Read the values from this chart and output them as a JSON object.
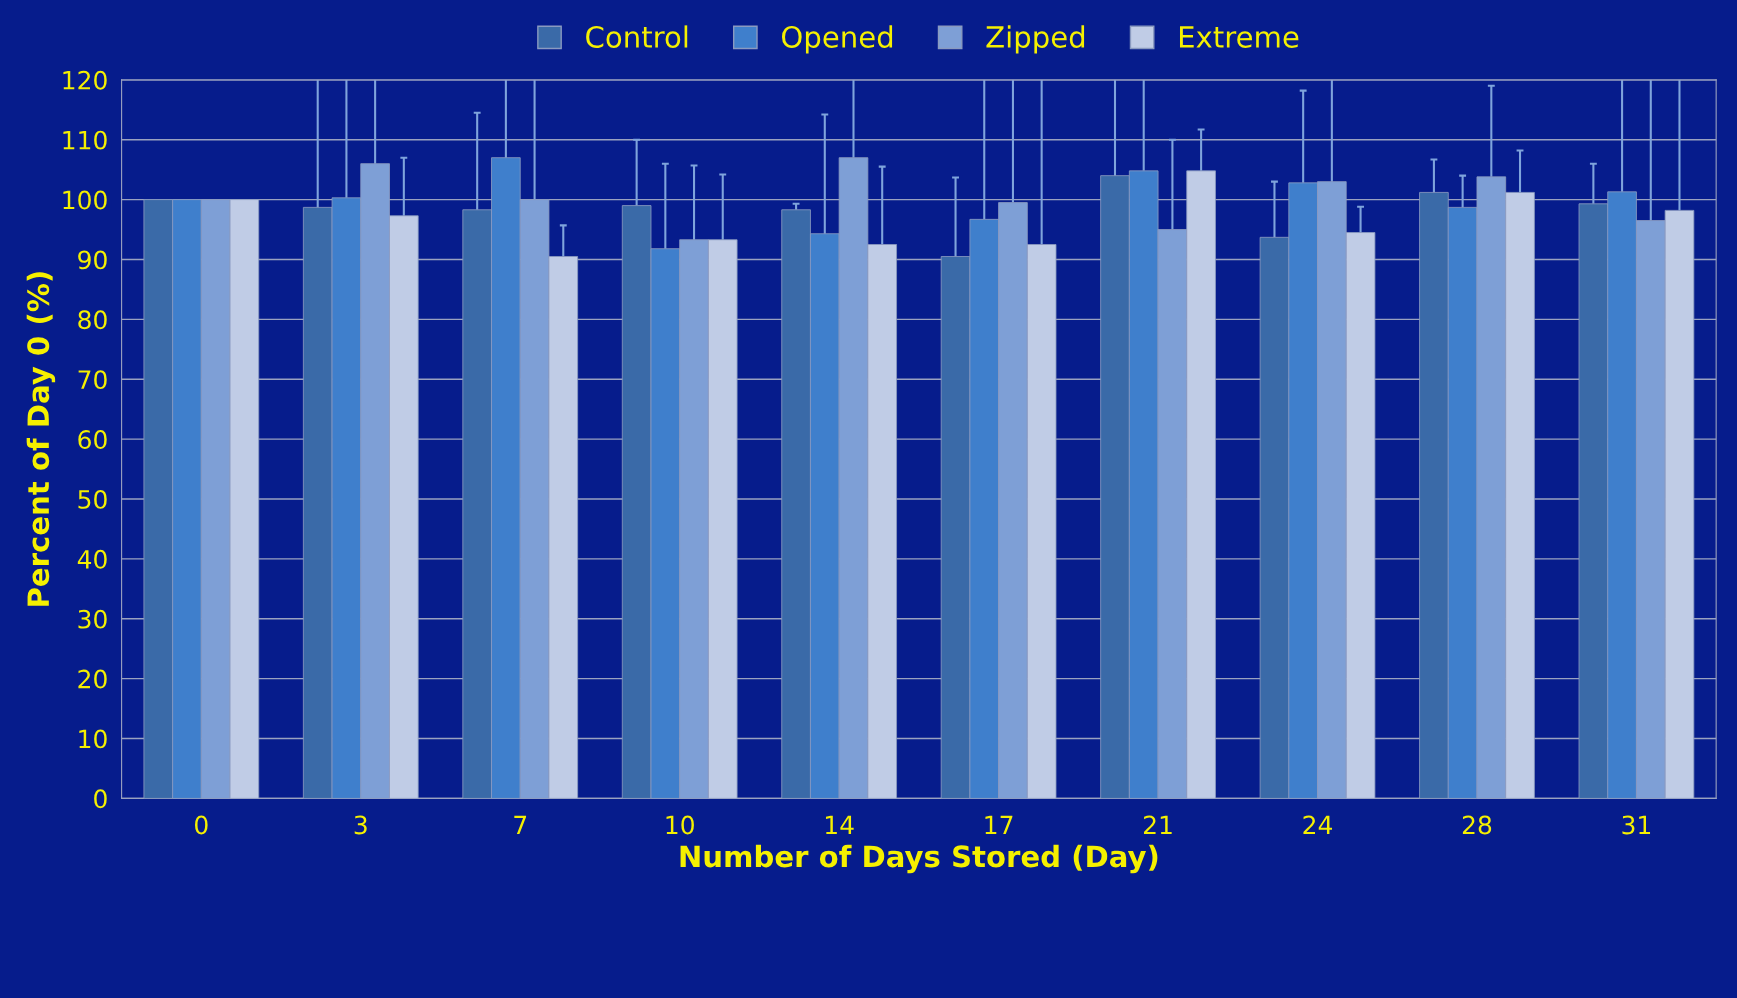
{
  "chart_data": {
    "type": "bar",
    "xlabel": "Number of Days Stored (Day)",
    "ylabel": "Percent of Day 0 (%)",
    "categories": [
      "0",
      "3",
      "7",
      "10",
      "14",
      "17",
      "21",
      "24",
      "28",
      "31"
    ],
    "series": [
      {
        "name": "Control",
        "color": "#3a6aa8",
        "values": [
          100,
          98.7,
          98.3,
          99,
          98.3,
          90.5,
          104,
          93.7,
          101.2,
          99.3
        ],
        "errors": [
          null,
          [
            98.7,
            120
          ],
          [
            98.3,
            114.5
          ],
          [
            99,
            110
          ],
          [
            98.3,
            99.3
          ],
          [
            90.5,
            103.7
          ],
          [
            104,
            120
          ],
          [
            93.7,
            103
          ],
          [
            101.2,
            106.7
          ],
          [
            99.3,
            106
          ]
        ]
      },
      {
        "name": "Opened",
        "color": "#3f7fcc",
        "values": [
          100,
          100.3,
          107,
          91.8,
          94.3,
          96.7,
          104.8,
          102.8,
          98.7,
          101.3
        ],
        "errors": [
          null,
          [
            100.3,
            120
          ],
          [
            107,
            120
          ],
          [
            91.8,
            106
          ],
          [
            94.3,
            114.2
          ],
          [
            96.7,
            120
          ],
          [
            104.8,
            120
          ],
          [
            102.8,
            118.2
          ],
          [
            98.7,
            104
          ],
          [
            101.3,
            120
          ]
        ]
      },
      {
        "name": "Zipped",
        "color": "#7e9fd6",
        "values": [
          100,
          106,
          100,
          93.3,
          107,
          99.5,
          95,
          103,
          103.8,
          96.5
        ],
        "errors": [
          null,
          [
            106,
            120
          ],
          [
            100,
            120
          ],
          [
            93.3,
            105.7
          ],
          [
            107,
            120
          ],
          [
            99.5,
            120
          ],
          [
            95,
            110
          ],
          [
            103,
            120
          ],
          [
            103.8,
            119
          ],
          [
            96.5,
            120
          ]
        ]
      },
      {
        "name": "Extreme",
        "color": "#c0cce6",
        "values": [
          100,
          97.3,
          90.5,
          93.3,
          92.5,
          92.5,
          104.8,
          94.5,
          101.2,
          98.2
        ],
        "errors": [
          null,
          [
            97.3,
            107
          ],
          [
            90.5,
            95.7
          ],
          [
            93.3,
            104.2
          ],
          [
            92.5,
            105.5
          ],
          [
            92.5,
            120
          ],
          [
            104.8,
            111.7
          ],
          [
            94.5,
            98.8
          ],
          [
            101.2,
            108.2
          ],
          [
            98.2,
            120
          ]
        ]
      }
    ],
    "ylim": [
      0,
      120
    ],
    "yticks": [
      0,
      10,
      20,
      30,
      40,
      50,
      60,
      70,
      80,
      90,
      100,
      110,
      120
    ],
    "grid": "y",
    "legend": "top"
  }
}
